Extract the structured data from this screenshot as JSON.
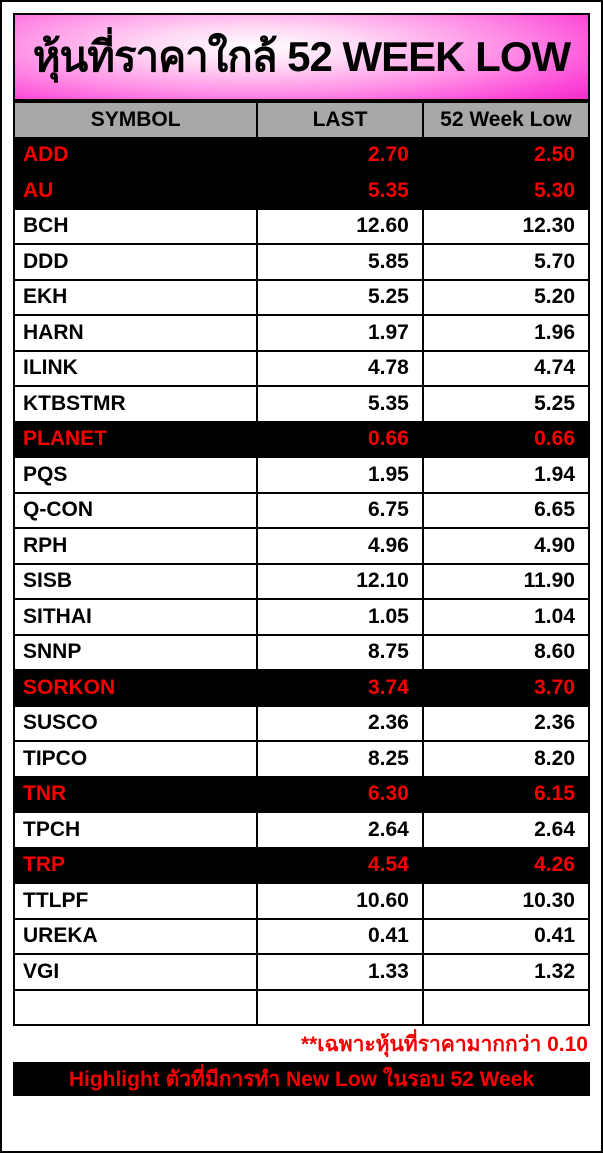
{
  "title": "หุ้นที่ราคาใกล้ 52 WEEK LOW",
  "table": {
    "columns": [
      "SYMBOL",
      "LAST",
      "52 Week Low"
    ],
    "rows": [
      {
        "symbol": "ADD",
        "last": "2.70",
        "low": "2.50",
        "new_low": true
      },
      {
        "symbol": "AU",
        "last": "5.35",
        "low": "5.30",
        "new_low": true
      },
      {
        "symbol": "BCH",
        "last": "12.60",
        "low": "12.30",
        "new_low": false
      },
      {
        "symbol": "DDD",
        "last": "5.85",
        "low": "5.70",
        "new_low": false
      },
      {
        "symbol": "EKH",
        "last": "5.25",
        "low": "5.20",
        "new_low": false
      },
      {
        "symbol": "HARN",
        "last": "1.97",
        "low": "1.96",
        "new_low": false
      },
      {
        "symbol": "ILINK",
        "last": "4.78",
        "low": "4.74",
        "new_low": false
      },
      {
        "symbol": "KTBSTMR",
        "last": "5.35",
        "low": "5.25",
        "new_low": false
      },
      {
        "symbol": "PLANET",
        "last": "0.66",
        "low": "0.66",
        "new_low": true
      },
      {
        "symbol": "PQS",
        "last": "1.95",
        "low": "1.94",
        "new_low": false
      },
      {
        "symbol": "Q-CON",
        "last": "6.75",
        "low": "6.65",
        "new_low": false
      },
      {
        "symbol": "RPH",
        "last": "4.96",
        "low": "4.90",
        "new_low": false
      },
      {
        "symbol": "SISB",
        "last": "12.10",
        "low": "11.90",
        "new_low": false
      },
      {
        "symbol": "SITHAI",
        "last": "1.05",
        "low": "1.04",
        "new_low": false
      },
      {
        "symbol": "SNNP",
        "last": "8.75",
        "low": "8.60",
        "new_low": false
      },
      {
        "symbol": "SORKON",
        "last": "3.74",
        "low": "3.70",
        "new_low": true
      },
      {
        "symbol": "SUSCO",
        "last": "2.36",
        "low": "2.36",
        "new_low": false
      },
      {
        "symbol": "TIPCO",
        "last": "8.25",
        "low": "8.20",
        "new_low": false
      },
      {
        "symbol": "TNR",
        "last": "6.30",
        "low": "6.15",
        "new_low": true
      },
      {
        "symbol": "TPCH",
        "last": "2.64",
        "low": "2.64",
        "new_low": false
      },
      {
        "symbol": "TRP",
        "last": "4.54",
        "low": "4.26",
        "new_low": true
      },
      {
        "symbol": "TTLPF",
        "last": "10.60",
        "low": "10.30",
        "new_low": false
      },
      {
        "symbol": "UREKA",
        "last": "0.41",
        "low": "0.41",
        "new_low": false
      },
      {
        "symbol": "VGI",
        "last": "1.33",
        "low": "1.32",
        "new_low": false
      },
      {
        "symbol": "",
        "last": "",
        "low": "",
        "new_low": false
      }
    ]
  },
  "footnote": "**เฉพาะหุ้นที่ราคามากกว่า 0.10",
  "footer": "Highlight ตัวที่มีการทำ New Low ในรอบ 52 Week",
  "colors": {
    "accent_pink": "#f93bd2",
    "header_bg": "#a8a8a8",
    "highlight_bg": "#000000",
    "highlight_text": "#f50000"
  }
}
